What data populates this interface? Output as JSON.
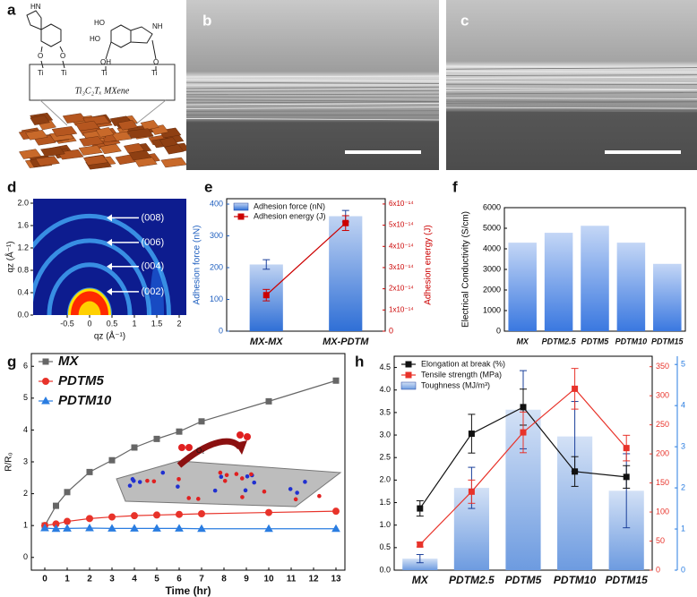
{
  "panels": {
    "a": {
      "label": "a",
      "atoms": [
        "HN",
        "HO",
        "HO",
        "NH",
        "O",
        "O",
        "OH",
        "O",
        "Ti",
        "Ti",
        "Ti",
        "Ti"
      ],
      "caption": "Ti₃C₂Tₓ MXene"
    },
    "b": {
      "label": "b"
    },
    "c": {
      "label": "c"
    }
  },
  "chart_data": [
    {
      "panel": "d",
      "type": "image",
      "xlabel": "qz (Å⁻¹)",
      "ylabel": "qz (Å⁻¹)",
      "xlim": [
        -1.26,
        2.16
      ],
      "ylim": [
        0,
        2.08
      ],
      "xticks": [
        -0.5,
        0,
        0.5,
        1,
        1.5,
        2
      ],
      "yticks": [
        {
          "value": 0,
          "label": "0.0"
        },
        0.4,
        0.8,
        1.2,
        1.6,
        {
          "value": 2,
          "label": "2.0"
        }
      ],
      "annotations": [
        {
          "label": "(008)",
          "y": 1.77
        },
        {
          "label": "(006)",
          "y": 1.33
        },
        {
          "label": "(004)",
          "y": 0.9
        },
        {
          "label": "(002)",
          "y": 0.45
        }
      ]
    },
    {
      "panel": "e",
      "type": "bar",
      "categories": [
        "MX-MX",
        "MX-PDTM"
      ],
      "ylabel": "Adhesion force (nN)",
      "y2label": "Adhesion energy (J)",
      "ylim": [
        0,
        417
      ],
      "yticks": [
        0,
        100,
        200,
        300,
        400
      ],
      "y2lim": [
        0,
        6.25e-14
      ],
      "y2ticks": [
        0,
        {
          "value": 1e-14,
          "label": "1x10⁻¹⁴"
        },
        {
          "value": 2e-14,
          "label": "2x10⁻¹⁴"
        },
        {
          "value": 3e-14,
          "label": "3x10⁻¹⁴"
        },
        {
          "value": 4e-14,
          "label": "4x10⁻¹⁴"
        },
        {
          "value": 5e-14,
          "label": "5x10⁻¹⁴"
        },
        {
          "value": 6e-14,
          "label": "6x10⁻¹⁴"
        }
      ],
      "y_color": "#1f5fbf",
      "y2_color": "#cc0000",
      "legend": "upper left",
      "series": [
        {
          "name": "Adhesion force (nN)",
          "color": "#2f6fd6",
          "values": [
            210,
            362
          ],
          "errors": [
            15,
            18
          ]
        },
        {
          "name": "Adhesion energy (J)",
          "type": "line",
          "axis": "y2",
          "marker": "square",
          "color": "#cc0000",
          "values": [
            1.7e-14,
            5.1e-14
          ],
          "errors": [
            2.7e-15,
            3.5e-15
          ]
        }
      ]
    },
    {
      "panel": "f",
      "type": "bar",
      "categories": [
        "MX",
        "PDTM2.5",
        "PDTM5",
        "PDTM10",
        "PDTM15"
      ],
      "ylabel": "Electrical Conductivity (S/cm)",
      "ylim": [
        0,
        6000
      ],
      "yticks": [
        0,
        1000,
        2000,
        3000,
        4000,
        5000,
        6000
      ],
      "series": [
        {
          "color": "#3a78e0",
          "values": [
            4300,
            4780,
            5120,
            4300,
            3270
          ]
        }
      ]
    },
    {
      "panel": "g",
      "type": "line",
      "x": [
        0,
        0.5,
        1,
        2,
        3,
        4,
        5,
        6,
        7,
        10,
        13
      ],
      "xlabel": "Time (hr)",
      "ylabel": "R/R₀",
      "xlim": [
        -0.6,
        13.4
      ],
      "ylim": [
        -0.4,
        6.4
      ],
      "xticks": [
        0,
        1,
        2,
        3,
        4,
        5,
        6,
        7,
        8,
        9,
        10,
        11,
        12,
        13
      ],
      "yticks": [
        0,
        1,
        2,
        3,
        4,
        5,
        6
      ],
      "legend": "upper left",
      "annotations": [
        "O₂"
      ],
      "series": [
        {
          "name": "MX",
          "color": "#666666",
          "marker": "square",
          "values": [
            1,
            1.62,
            2.05,
            2.68,
            3.05,
            3.45,
            3.72,
            3.95,
            4.27,
            4.9,
            5.55
          ]
        },
        {
          "name": "PDTM5",
          "color": "#e8332a",
          "marker": "circle",
          "values": [
            1,
            1.05,
            1.13,
            1.22,
            1.27,
            1.31,
            1.33,
            1.35,
            1.37,
            1.41,
            1.45
          ]
        },
        {
          "name": "PDTM10",
          "color": "#2a7de1",
          "marker": "triangle",
          "values": [
            0.92,
            0.9,
            0.91,
            0.92,
            0.91,
            0.91,
            0.91,
            0.91,
            0.9,
            0.9,
            0.9
          ]
        }
      ]
    },
    {
      "panel": "h",
      "type": "bar",
      "categories": [
        "MX",
        "PDTM2.5",
        "PDTM5",
        "PDTM10",
        "PDTM15"
      ],
      "ylim": [
        0,
        4.75
      ],
      "yticks": [
        {
          "value": 0,
          "label": "0.0"
        },
        0.5,
        {
          "value": 1,
          "label": "1.0"
        },
        1.5,
        {
          "value": 2,
          "label": "2.0"
        },
        2.5,
        {
          "value": 3,
          "label": "3.0"
        },
        3.5,
        {
          "value": 4,
          "label": "4.0"
        },
        4.5
      ],
      "y2lim": [
        0,
        368
      ],
      "y2ticks": [
        0,
        50,
        100,
        150,
        200,
        250,
        300,
        350
      ],
      "y3lim": [
        0,
        5.2
      ],
      "y3ticks": [
        0,
        1,
        2,
        3,
        4,
        5
      ],
      "y2_color": "#e8332a",
      "y3_color": "#2a7de1",
      "legend": "upper left",
      "series": [
        {
          "name": "Elongation at break (%)",
          "type": "line",
          "marker": "square",
          "color": "#111111",
          "values": [
            1.37,
            3.03,
            3.62,
            2.19,
            2.07
          ],
          "errors": [
            0.17,
            0.43,
            0.4,
            0.33,
            0.25
          ]
        },
        {
          "name": "Tensile strength (MPa)",
          "type": "line",
          "axis": "y2",
          "marker": "square",
          "color": "#e8332a",
          "values": [
            44,
            135,
            237,
            312,
            210
          ],
          "errors": [
            4,
            20,
            35,
            35,
            22
          ]
        },
        {
          "name": "Toughness (MJ/m³)",
          "type": "bar",
          "axis": "y3",
          "color": "#6d9be0",
          "values": [
            0.28,
            2.0,
            3.9,
            3.25,
            1.93
          ],
          "errors": [
            0.1,
            0.5,
            0.95,
            0.85,
            0.9
          ]
        }
      ]
    }
  ]
}
